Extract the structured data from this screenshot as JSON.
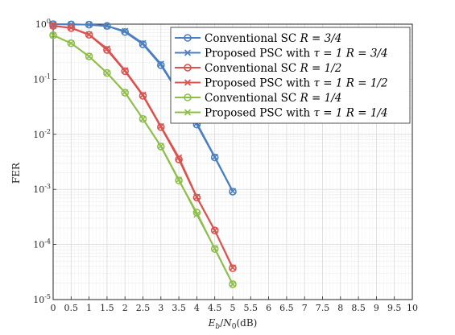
{
  "chart_data": {
    "type": "line",
    "xlabel": "E_b/N_0(dB)",
    "ylabel": "FER",
    "y_scale": "log",
    "xlim": [
      0,
      10
    ],
    "ylim": [
      1e-05,
      1
    ],
    "x_ticks": [
      "0",
      "0.5",
      "1",
      "1.5",
      "2",
      "2.5",
      "3",
      "3.5",
      "4",
      "4.5",
      "5",
      "5.5",
      "6",
      "6.5",
      "7",
      "7.5",
      "8",
      "8.5",
      "9",
      "9.5",
      "10"
    ],
    "y_ticks": [
      {
        "value": 1,
        "mantissa": "10",
        "exp": "0"
      },
      {
        "value": 0.1,
        "mantissa": "10",
        "exp": "-1"
      },
      {
        "value": 0.01,
        "mantissa": "10",
        "exp": "-2"
      },
      {
        "value": 0.001,
        "mantissa": "10",
        "exp": "-3"
      },
      {
        "value": 0.0001,
        "mantissa": "10",
        "exp": "-4"
      },
      {
        "value": 1e-05,
        "mantissa": "10",
        "exp": "-5"
      }
    ],
    "grid": true,
    "minor_grid": true,
    "legend_position": "top-right",
    "series": [
      {
        "name": "Conventional SC R = 3/4",
        "label_plain": "Conventional SC ",
        "label_math": "R = 3/4",
        "color": "#4a7fc0",
        "marker": "circle",
        "x": [
          0,
          0.5,
          1,
          1.5,
          2,
          2.5,
          3,
          3.5,
          4,
          4.5,
          5
        ],
        "y": [
          1.0,
          0.99,
          0.98,
          0.93,
          0.72,
          0.43,
          0.18,
          0.055,
          0.015,
          0.0038,
          0.00091
        ]
      },
      {
        "name": "Proposed PSC with τ = 1 R = 3/4",
        "label_plain": "Proposed PSC with ",
        "label_math": "τ = 1 R = 3/4",
        "color": "#4a7fc0",
        "marker": "x",
        "x": [
          0,
          0.5,
          1,
          1.5,
          2,
          2.5,
          3,
          3.5,
          4,
          4.5,
          5
        ],
        "y": [
          1.0,
          0.99,
          0.98,
          0.92,
          0.75,
          0.45,
          0.19,
          0.057,
          0.016,
          0.0039,
          0.00093
        ]
      },
      {
        "name": "Conventional SC R = 1/2",
        "label_plain": "Conventional SC ",
        "label_math": "R = 1/2",
        "color": "#d9534f",
        "marker": "circle",
        "x": [
          0,
          0.5,
          1,
          1.5,
          2,
          2.5,
          3,
          3.5,
          4,
          4.5,
          5
        ],
        "y": [
          0.93,
          0.85,
          0.64,
          0.34,
          0.14,
          0.05,
          0.0135,
          0.0035,
          0.00071,
          0.00018,
          3.7e-05
        ]
      },
      {
        "name": "Proposed PSC with τ = 1 R = 1/2",
        "label_plain": "Proposed PSC with ",
        "label_math": "τ = 1 R = 1/2",
        "color": "#d9534f",
        "marker": "x",
        "x": [
          0,
          0.5,
          1,
          1.5,
          2,
          2.5,
          3,
          3.5,
          4,
          4.5,
          5
        ],
        "y": [
          0.93,
          0.86,
          0.65,
          0.36,
          0.145,
          0.052,
          0.014,
          0.0038,
          0.00073,
          0.00018,
          3.8e-05
        ]
      },
      {
        "name": "Conventional SC R = 1/4",
        "label_plain": "Conventional SC ",
        "label_math": "R = 1/4",
        "color": "#8fbf4a",
        "marker": "circle",
        "x": [
          0,
          0.5,
          1,
          1.5,
          2,
          2.5,
          3,
          3.5,
          4,
          4.5,
          5
        ],
        "y": [
          0.63,
          0.45,
          0.26,
          0.13,
          0.057,
          0.019,
          0.006,
          0.00145,
          0.00038,
          8.3e-05,
          1.9e-05
        ]
      },
      {
        "name": "Proposed PSC with τ = 1 R = 1/4",
        "label_plain": "Proposed PSC with ",
        "label_math": "τ = 1 R = 1/4",
        "color": "#8fbf4a",
        "marker": "x",
        "x": [
          0,
          0.5,
          1,
          1.5,
          2,
          2.5,
          3,
          3.5,
          4,
          4.5,
          5
        ],
        "y": [
          0.63,
          0.45,
          0.26,
          0.13,
          0.058,
          0.019,
          0.0061,
          0.0015,
          0.00035,
          8.5e-05,
          1.9e-05
        ]
      }
    ]
  }
}
